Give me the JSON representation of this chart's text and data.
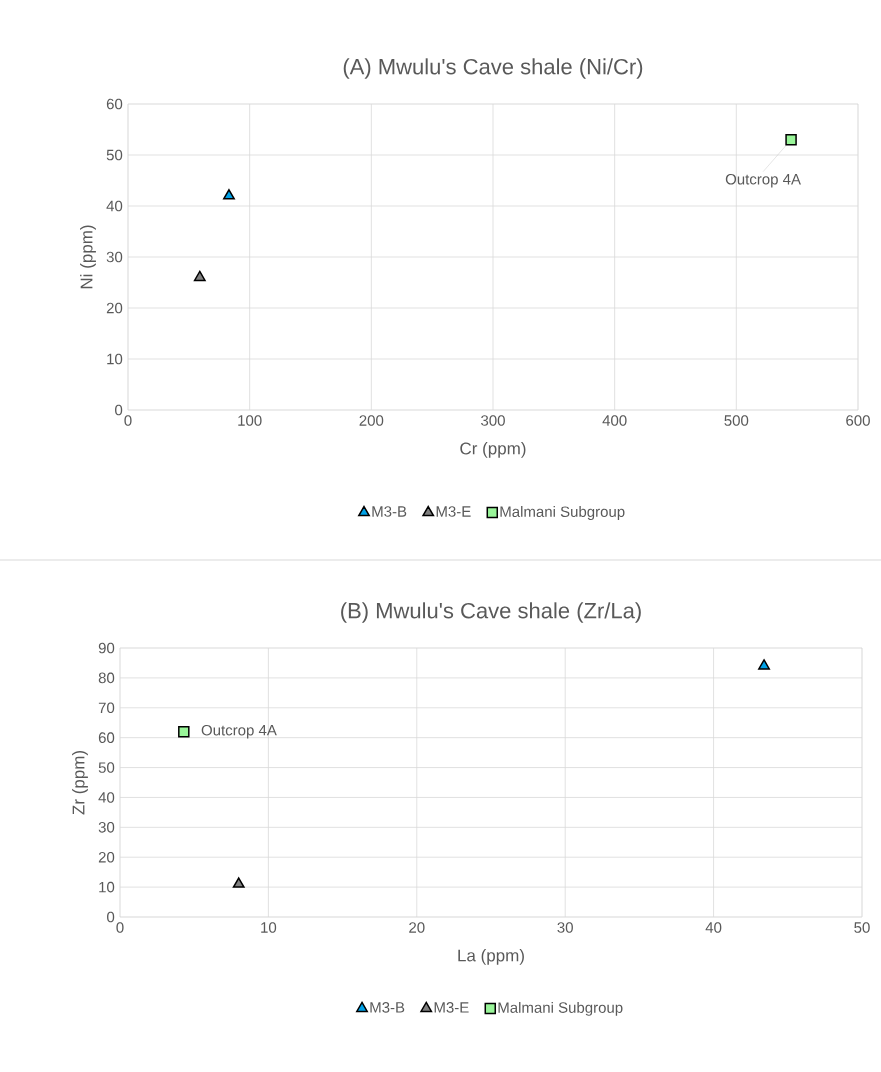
{
  "chart_data": [
    {
      "type": "scatter",
      "title": "(A) Mwulu's Cave shale (Ni/Cr)",
      "xlabel": "Cr (ppm)",
      "ylabel": "Ni (ppm)",
      "xlim": [
        0,
        600
      ],
      "ylim": [
        0,
        60
      ],
      "xticks": [
        0,
        100,
        200,
        300,
        400,
        500,
        600
      ],
      "yticks": [
        0,
        10,
        20,
        30,
        40,
        50,
        60
      ],
      "grid": true,
      "legend": "bottom",
      "series": [
        {
          "name": "M3-B",
          "color": "#00a2e8",
          "marker": "triangle",
          "x": [
            83
          ],
          "values": [
            42
          ]
        },
        {
          "name": "M3-E",
          "color": "#808080",
          "marker": "triangle",
          "x": [
            59
          ],
          "values": [
            26
          ]
        },
        {
          "name": "Malmani Subgroup",
          "color": "#99f599",
          "marker": "square",
          "x": [
            545
          ],
          "values": [
            53
          ]
        }
      ],
      "annotations": [
        {
          "text": "Outcrop 4A",
          "x": 545,
          "y": 53
        }
      ]
    },
    {
      "type": "scatter",
      "title": "(B) Mwulu's Cave shale (Zr/La)",
      "xlabel": "La (ppm)",
      "ylabel": "Zr (ppm)",
      "xlim": [
        0,
        50
      ],
      "ylim": [
        0,
        90
      ],
      "xticks": [
        0,
        10,
        20,
        30,
        40,
        50
      ],
      "yticks": [
        0,
        10,
        20,
        30,
        40,
        50,
        60,
        70,
        80,
        90
      ],
      "grid": true,
      "legend": "bottom",
      "series": [
        {
          "name": "M3-B",
          "color": "#00a2e8",
          "marker": "triangle",
          "x": [
            43.4
          ],
          "values": [
            84
          ]
        },
        {
          "name": "M3-E",
          "color": "#808080",
          "marker": "triangle",
          "x": [
            8
          ],
          "values": [
            11
          ]
        },
        {
          "name": "Malmani Subgroup",
          "color": "#99f599",
          "marker": "square",
          "x": [
            4.3
          ],
          "values": [
            62
          ]
        }
      ],
      "annotations": [
        {
          "text": "Outcrop 4A",
          "x": 4.3,
          "y": 62
        }
      ]
    }
  ]
}
